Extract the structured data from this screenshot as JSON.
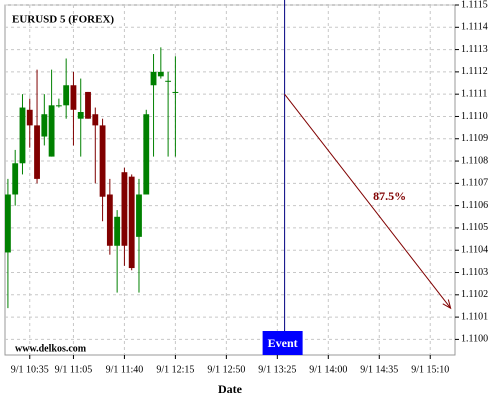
{
  "chart_data": {
    "type": "candlestick",
    "title": "EURUSD 5 (FOREX)",
    "watermark": "www.delkos.com",
    "x_label": "Date",
    "x": [
      620,
      625,
      630,
      635,
      640,
      645,
      650,
      655,
      660,
      665,
      670,
      675,
      680,
      685,
      690,
      695,
      700,
      705,
      710,
      715,
      720,
      725,
      730,
      735
    ],
    "open": [
      1.11039,
      1.11065,
      1.11079,
      1.11103,
      1.11096,
      1.11091,
      1.11082,
      1.11105,
      1.11105,
      1.11114,
      1.11099,
      1.11111,
      1.11101,
      1.11096,
      1.11065,
      1.11042,
      1.11075,
      1.11073,
      1.11046,
      1.11065,
      1.11114,
      1.11118,
      1.11116,
      1.11111
    ],
    "high": [
      1.11072,
      1.11085,
      1.1111,
      1.11108,
      1.11121,
      1.1111,
      1.11121,
      1.11108,
      1.11126,
      1.1112,
      1.11117,
      1.11111,
      1.11104,
      1.11099,
      1.11072,
      1.11058,
      1.11077,
      1.11074,
      1.11072,
      1.11103,
      1.11128,
      1.11131,
      1.1112,
      1.11127
    ],
    "low": [
      1.11014,
      1.1106,
      1.11074,
      1.11086,
      1.1107,
      1.11087,
      1.11082,
      1.11104,
      1.11099,
      1.11087,
      1.11082,
      1.11099,
      1.1107,
      1.11053,
      1.11038,
      1.11021,
      1.11033,
      1.11031,
      1.11021,
      1.11065,
      1.11082,
      1.11117,
      1.11082,
      1.11082
    ],
    "close": [
      1.11065,
      1.11079,
      1.11104,
      1.11096,
      1.11072,
      1.11101,
      1.11105,
      1.11105,
      1.11114,
      1.11103,
      1.11102,
      1.11099,
      1.11096,
      1.11064,
      1.11042,
      1.11055,
      1.11042,
      1.11032,
      1.11065,
      1.11101,
      1.1112,
      1.1112,
      1.11116,
      1.11111
    ],
    "up_color": "#008000",
    "down_color": "#800000",
    "xlim": [
      618,
      927
    ],
    "xticks": [
      {
        "value": 635,
        "label": "9/1 10:35"
      },
      {
        "value": 665,
        "label": "9/1 11:05"
      },
      {
        "value": 700,
        "label": "9/1 11:40"
      },
      {
        "value": 735,
        "label": "9/1 12:15"
      },
      {
        "value": 770,
        "label": "9/1 12:50"
      },
      {
        "value": 805,
        "label": "9/1 13:25"
      },
      {
        "value": 840,
        "label": "9/1 14:00"
      },
      {
        "value": 875,
        "label": "9/1 14:35"
      },
      {
        "value": 910,
        "label": "9/1 15:10"
      }
    ],
    "ylim": [
      1.10993,
      1.1115
    ],
    "yticks": [
      {
        "value": 1.11,
        "label": "1.1100"
      },
      1.1101,
      1.1102,
      1.1103,
      1.1104,
      1.1105,
      1.1106,
      1.1107,
      1.1108,
      1.1109,
      {
        "value": 1.111,
        "label": "1.1110"
      },
      1.1111,
      1.1112,
      1.1113,
      1.1114,
      1.1115
    ],
    "grid": true,
    "event": {
      "x": 810,
      "label": "Event",
      "color": "#000080"
    },
    "forecast": {
      "x": [
        810,
        924
      ],
      "y": [
        1.1111,
        1.11014
      ],
      "label": "87.5%",
      "color": "#800000"
    }
  }
}
